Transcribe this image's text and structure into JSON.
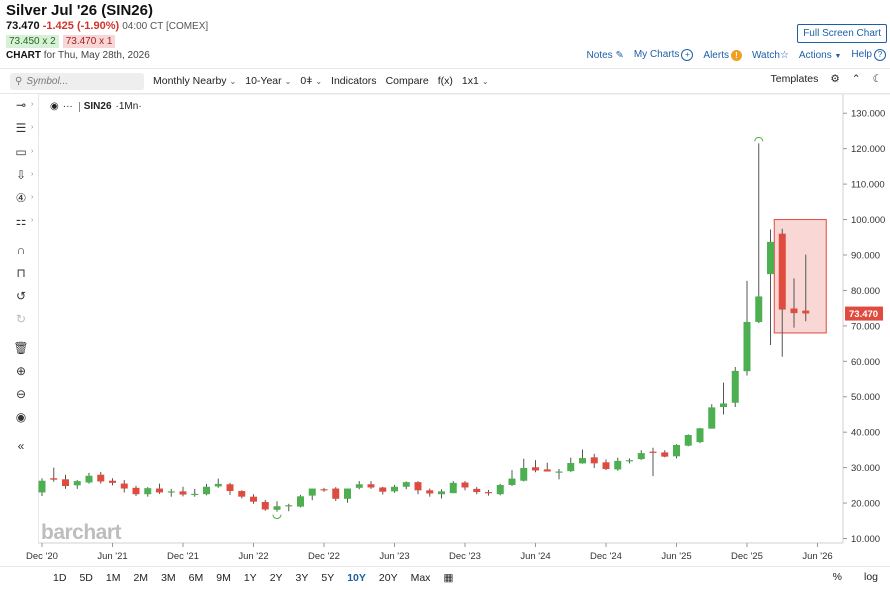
{
  "header": {
    "title": "Silver Jul '26 (SIN26)",
    "last": "73.470",
    "change": "-1.425 (-1.90%)",
    "time_exchange": "04:00 CT [COMEX]",
    "bid": "73.450 x 2",
    "ask": "73.470 x 1",
    "chart_for_label": "CHART",
    "chart_for_date": "for Thu, May 28th, 2026"
  },
  "actions": {
    "full_screen": "Full Screen Chart",
    "notes": "Notes",
    "my_charts": "My Charts",
    "alerts": "Alerts",
    "watch": "Watch",
    "actions": "Actions",
    "help": "Help"
  },
  "toolbar": {
    "search_placeholder": "Symbol...",
    "period": "Monthly Nearby",
    "range": "10-Year",
    "zero_label": "0",
    "indicators": "Indicators",
    "compare": "Compare",
    "fx": "f(x)",
    "layout": "1x1",
    "templates": "Templates"
  },
  "legend": {
    "symbol": "SIN26",
    "interval": "·1Mn·"
  },
  "watermark": "barchart",
  "bottom": {
    "ranges": [
      "1D",
      "5D",
      "1M",
      "2M",
      "3M",
      "6M",
      "9M",
      "1Y",
      "2Y",
      "3Y",
      "5Y",
      "10Y",
      "20Y",
      "Max"
    ],
    "active_range": "10Y",
    "percent": "%",
    "log": "log"
  },
  "colors": {
    "up": "#4caf50",
    "down": "#e04b3f",
    "accent": "#1d5fa7",
    "price_tag": "#e04b3f"
  },
  "chart_data": {
    "type": "candlestick",
    "interval": "monthly",
    "ylim": [
      10,
      135
    ],
    "y_ticks": [
      10,
      20,
      30,
      40,
      50,
      60,
      70,
      80,
      90,
      100,
      110,
      120,
      130
    ],
    "y_tick_labels": [
      "10.000",
      "20.000",
      "30.000",
      "40.000",
      "50.000",
      "60.000",
      "70.000",
      "80.000",
      "90.000",
      "100.000",
      "110.000",
      "120.000",
      "130.000"
    ],
    "x_tick_labels": [
      "Dec '20",
      "Jun '21",
      "Dec '21",
      "Jun '22",
      "Dec '22",
      "Jun '23",
      "Dec '23",
      "Jun '24",
      "Dec '24",
      "Jun '25",
      "Dec '25",
      "Jun '26"
    ],
    "x_tick_months": [
      0,
      6,
      12,
      18,
      24,
      30,
      36,
      42,
      48,
      54,
      60,
      66
    ],
    "current_price": "73.470",
    "highlight_range": {
      "from_month": 63,
      "to_month": 67,
      "low": 68,
      "high": 100
    },
    "candles": [
      {
        "m": 0,
        "o": 23,
        "h": 27,
        "l": 22,
        "c": 26.3
      },
      {
        "m": 1,
        "o": 27,
        "h": 30,
        "l": 26,
        "c": 26.6
      },
      {
        "m": 2,
        "o": 26.7,
        "h": 28,
        "l": 24,
        "c": 24.8
      },
      {
        "m": 3,
        "o": 25,
        "h": 26.5,
        "l": 24,
        "c": 26.2
      },
      {
        "m": 4,
        "o": 25.8,
        "h": 28.5,
        "l": 25.5,
        "c": 27.7
      },
      {
        "m": 5,
        "o": 28,
        "h": 28.8,
        "l": 25.5,
        "c": 26.1
      },
      {
        "m": 6,
        "o": 26.3,
        "h": 27,
        "l": 25,
        "c": 25.7
      },
      {
        "m": 7,
        "o": 25.5,
        "h": 26.5,
        "l": 23,
        "c": 24.1
      },
      {
        "m": 8,
        "o": 24.3,
        "h": 24.9,
        "l": 22,
        "c": 22.5
      },
      {
        "m": 9,
        "o": 22.5,
        "h": 24.5,
        "l": 21.8,
        "c": 24.2
      },
      {
        "m": 10,
        "o": 24.1,
        "h": 25.5,
        "l": 22.6,
        "c": 23
      },
      {
        "m": 11,
        "o": 23.1,
        "h": 24,
        "l": 21.8,
        "c": 23.3
      },
      {
        "m": 12,
        "o": 23.3,
        "h": 24.6,
        "l": 21.9,
        "c": 22.4
      },
      {
        "m": 13,
        "o": 22.4,
        "h": 24,
        "l": 21.8,
        "c": 22.6
      },
      {
        "m": 14,
        "o": 22.5,
        "h": 25.4,
        "l": 22.2,
        "c": 24.6
      },
      {
        "m": 15,
        "o": 24.7,
        "h": 26.9,
        "l": 24.3,
        "c": 25.4
      },
      {
        "m": 16,
        "o": 25.3,
        "h": 25.7,
        "l": 22.3,
        "c": 23.4
      },
      {
        "m": 17,
        "o": 23.4,
        "h": 23.6,
        "l": 21.3,
        "c": 21.8
      },
      {
        "m": 18,
        "o": 21.8,
        "h": 22.5,
        "l": 19.8,
        "c": 20.4
      },
      {
        "m": 19,
        "o": 20.3,
        "h": 20.9,
        "l": 17.8,
        "c": 18.2
      },
      {
        "m": 20,
        "o": 18.1,
        "h": 20.5,
        "l": 17.6,
        "c": 19.1
      },
      {
        "m": 21,
        "o": 19.1,
        "h": 19.8,
        "l": 17.7,
        "c": 19.4
      },
      {
        "m": 22,
        "o": 19,
        "h": 22.3,
        "l": 18.8,
        "c": 21.9
      },
      {
        "m": 23,
        "o": 22.1,
        "h": 24,
        "l": 20.8,
        "c": 24.1
      },
      {
        "m": 24,
        "o": 23.9,
        "h": 24.3,
        "l": 23.2,
        "c": 23.8
      },
      {
        "m": 25,
        "o": 24.1,
        "h": 24.5,
        "l": 20.6,
        "c": 21.2
      },
      {
        "m": 26,
        "o": 21.2,
        "h": 24.1,
        "l": 20.1,
        "c": 24.1
      },
      {
        "m": 27,
        "o": 24.3,
        "h": 26.2,
        "l": 23.9,
        "c": 25.3
      },
      {
        "m": 28,
        "o": 25.3,
        "h": 26.2,
        "l": 24,
        "c": 24.4
      },
      {
        "m": 29,
        "o": 24.4,
        "h": 24.6,
        "l": 22.4,
        "c": 23.2
      },
      {
        "m": 30,
        "o": 23.3,
        "h": 25.1,
        "l": 22.9,
        "c": 24.6
      },
      {
        "m": 31,
        "o": 24.6,
        "h": 26.1,
        "l": 23.9,
        "c": 25.9
      },
      {
        "m": 32,
        "o": 25.9,
        "h": 26.2,
        "l": 22.5,
        "c": 23.6
      },
      {
        "m": 33,
        "o": 23.6,
        "h": 24.1,
        "l": 21.8,
        "c": 22.7
      },
      {
        "m": 34,
        "o": 22.5,
        "h": 23.9,
        "l": 21.3,
        "c": 23.3
      },
      {
        "m": 35,
        "o": 22.8,
        "h": 26.2,
        "l": 22.8,
        "c": 25.7
      },
      {
        "m": 36,
        "o": 25.8,
        "h": 26.2,
        "l": 23.6,
        "c": 24.4
      },
      {
        "m": 37,
        "o": 24,
        "h": 24.5,
        "l": 22.5,
        "c": 23.1
      },
      {
        "m": 38,
        "o": 23.1,
        "h": 23.7,
        "l": 22.1,
        "c": 22.8
      },
      {
        "m": 39,
        "o": 22.5,
        "h": 25.4,
        "l": 22.2,
        "c": 25.1
      },
      {
        "m": 40,
        "o": 25.1,
        "h": 29.3,
        "l": 24.8,
        "c": 26.9
      },
      {
        "m": 41,
        "o": 26.3,
        "h": 32.5,
        "l": 26.1,
        "c": 29.9
      },
      {
        "m": 42,
        "o": 30.1,
        "h": 32.1,
        "l": 28.7,
        "c": 29.2
      },
      {
        "m": 43,
        "o": 29.5,
        "h": 31.4,
        "l": 29,
        "c": 28.9
      },
      {
        "m": 44,
        "o": 28.8,
        "h": 29.6,
        "l": 26.7,
        "c": 28.9
      },
      {
        "m": 45,
        "o": 29,
        "h": 32.8,
        "l": 28.8,
        "c": 31.3
      },
      {
        "m": 46,
        "o": 31.2,
        "h": 35.1,
        "l": 31.1,
        "c": 32.7
      },
      {
        "m": 47,
        "o": 32.9,
        "h": 33.9,
        "l": 29.9,
        "c": 31.2
      },
      {
        "m": 48,
        "o": 31.5,
        "h": 32.3,
        "l": 29.3,
        "c": 29.6
      },
      {
        "m": 49,
        "o": 29.5,
        "h": 32.8,
        "l": 29.1,
        "c": 31.9
      },
      {
        "m": 50,
        "o": 31.8,
        "h": 32.6,
        "l": 31.2,
        "c": 32.1
      },
      {
        "m": 51,
        "o": 32.4,
        "h": 34.9,
        "l": 32.2,
        "c": 34.1
      },
      {
        "m": 52,
        "o": 34.5,
        "h": 35.6,
        "l": 27.6,
        "c": 34.4
      },
      {
        "m": 53,
        "o": 34.3,
        "h": 34.9,
        "l": 32.9,
        "c": 33.1
      },
      {
        "m": 54,
        "o": 33.2,
        "h": 36.6,
        "l": 32.6,
        "c": 36.4
      },
      {
        "m": 55,
        "o": 36.2,
        "h": 39.4,
        "l": 36,
        "c": 39.2
      },
      {
        "m": 56,
        "o": 37.2,
        "h": 41.2,
        "l": 36.9,
        "c": 41.1
      },
      {
        "m": 57,
        "o": 41,
        "h": 47.9,
        "l": 41,
        "c": 47
      },
      {
        "m": 58,
        "o": 47.1,
        "h": 54,
        "l": 45,
        "c": 48.1
      },
      {
        "m": 59,
        "o": 48.3,
        "h": 58.4,
        "l": 47.1,
        "c": 57.3
      },
      {
        "m": 60,
        "o": 57.2,
        "h": 82.7,
        "l": 56,
        "c": 71.1
      },
      {
        "m": 61,
        "o": 71.1,
        "h": 121.5,
        "l": 70.8,
        "c": 78.3
      },
      {
        "m": 62,
        "o": 84.6,
        "h": 97.2,
        "l": 64.6,
        "c": 93.7
      },
      {
        "m": 63,
        "o": 96,
        "h": 97.4,
        "l": 61.3,
        "c": 74.6
      },
      {
        "m": 64,
        "o": 74.9,
        "h": 83.4,
        "l": 69.5,
        "c": 73.6
      },
      {
        "m": 65,
        "o": 74.3,
        "h": 90.1,
        "l": 71.3,
        "c": 73.5
      }
    ]
  }
}
